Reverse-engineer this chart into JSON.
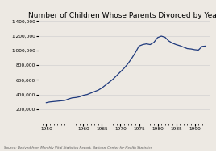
{
  "title": "Number of Children Whose Parents Divorced by Year",
  "source_text": "Source: Derived from Monthly Vital Statistics Report, National Center for Health Statistics",
  "line_color": "#1f3a7d",
  "background_color": "#ede9e3",
  "years": [
    1950,
    1951,
    1952,
    1953,
    1954,
    1955,
    1956,
    1957,
    1958,
    1959,
    1960,
    1961,
    1962,
    1963,
    1964,
    1965,
    1966,
    1967,
    1968,
    1969,
    1970,
    1971,
    1972,
    1973,
    1974,
    1975,
    1976,
    1977,
    1978,
    1979,
    1980,
    1981,
    1982,
    1983,
    1984,
    1985,
    1986,
    1987,
    1988,
    1989,
    1990,
    1991,
    1992,
    1993
  ],
  "values": [
    290000,
    300000,
    305000,
    310000,
    315000,
    320000,
    340000,
    355000,
    360000,
    370000,
    390000,
    400000,
    420000,
    440000,
    460000,
    490000,
    530000,
    570000,
    610000,
    660000,
    710000,
    760000,
    820000,
    890000,
    970000,
    1060000,
    1080000,
    1090000,
    1080000,
    1110000,
    1175000,
    1195000,
    1180000,
    1130000,
    1100000,
    1080000,
    1065000,
    1045000,
    1025000,
    1020000,
    1010000,
    1005000,
    1055000,
    1060000
  ],
  "ylim": [
    0,
    1400000
  ],
  "yticks": [
    200000,
    400000,
    600000,
    800000,
    1000000,
    1200000,
    1400000
  ],
  "xticks": [
    1950,
    1960,
    1965,
    1970,
    1975,
    1980,
    1985,
    1990
  ],
  "xlim": [
    1948,
    1994
  ]
}
